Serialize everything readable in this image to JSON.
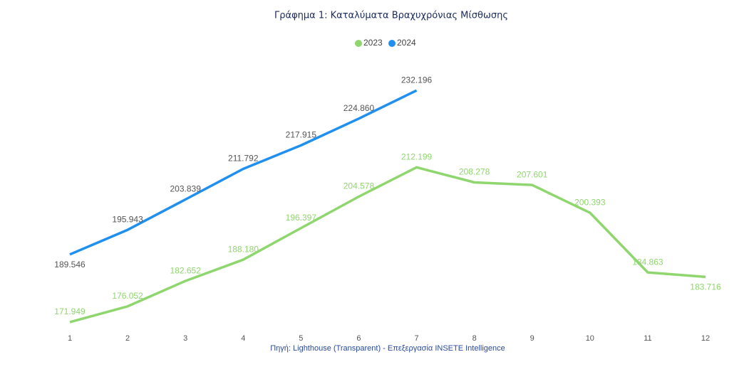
{
  "chart_data": {
    "type": "line",
    "title": "Γράφημα 1: Καταλύματα Βραχυχρόνιας Μίσθωσης",
    "source": "Πηγή: Lighthouse (Transparent) - Επεξεργασία INSETE Intelligence",
    "categories": [
      "1",
      "2",
      "3",
      "4",
      "5",
      "6",
      "7",
      "8",
      "9",
      "10",
      "11",
      "12"
    ],
    "ylim": [
      170000,
      235000
    ],
    "legend": "top",
    "series": [
      {
        "name": "2023",
        "color": "#8fd66e",
        "values": [
          171949,
          176052,
          182652,
          188180,
          196397,
          204578,
          212199,
          208278,
          207601,
          200393,
          184863,
          183716
        ],
        "value_labels": [
          "171.949",
          "176.052",
          "182.652",
          "188.180",
          "196.397",
          "204.578",
          "212.199",
          "208.278",
          "207.601",
          "200.393",
          "184.863",
          "183.716"
        ]
      },
      {
        "name": "2024",
        "color": "#1f8ff0",
        "values": [
          189546,
          195943,
          203839,
          211792,
          217915,
          224860,
          232196,
          null,
          null,
          null,
          null,
          null
        ],
        "value_labels": [
          "189.546",
          "195.943",
          "203.839",
          "211.792",
          "217.915",
          "224.860",
          "232.196",
          null,
          null,
          null,
          null,
          null
        ]
      }
    ]
  }
}
